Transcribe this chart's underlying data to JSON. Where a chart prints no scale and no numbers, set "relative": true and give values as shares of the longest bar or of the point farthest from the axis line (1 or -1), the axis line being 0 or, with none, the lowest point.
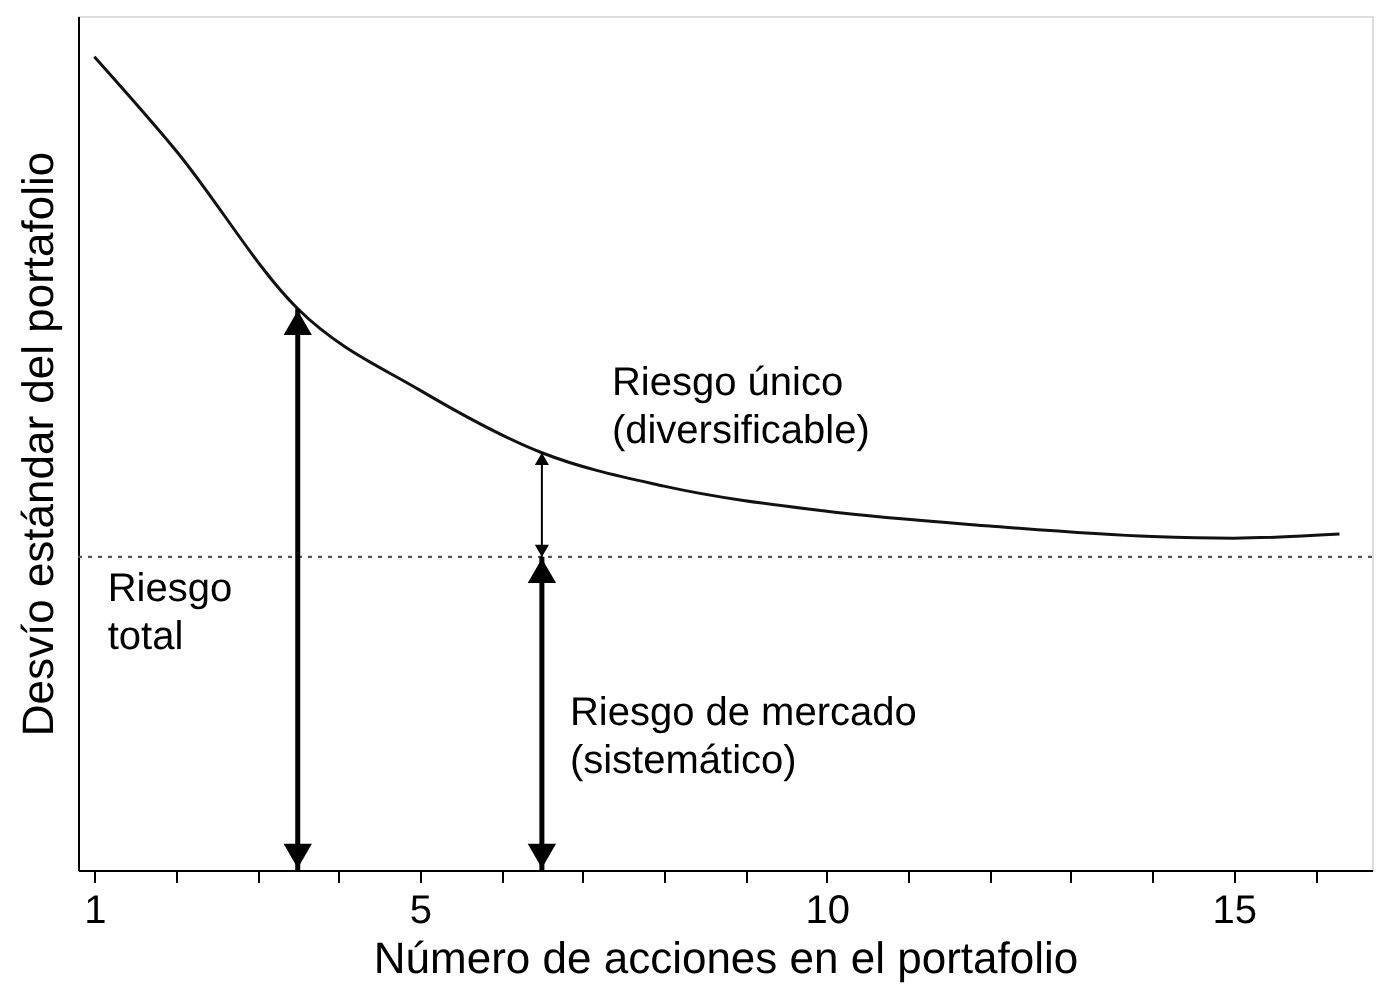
{
  "chart_data": {
    "type": "line",
    "relative": true,
    "xlabel": "Número de acciones en el portafolio",
    "ylabel": "Desvío estándar del portafolio",
    "x": [
      1,
      2,
      3.5,
      5,
      6.5,
      8,
      10,
      12,
      14,
      15,
      16.3
    ],
    "series": [
      {
        "color": "#111111",
        "values": [
          1,
          0.885,
          0.69,
          0.59,
          0.513,
          0.472,
          0.441,
          0.423,
          0.41,
          0.408,
          0.413
        ]
      }
    ],
    "xlim": [
      0.8,
      16.7
    ],
    "xticks": [
      1,
      {
        "value": 2,
        "label": null
      },
      {
        "value": 3,
        "label": null
      },
      {
        "value": 4,
        "label": null
      },
      5,
      {
        "value": 6,
        "label": null
      },
      {
        "value": 7,
        "label": null
      },
      {
        "value": 8,
        "label": null
      },
      {
        "value": 9,
        "label": null
      },
      10,
      {
        "value": 11,
        "label": null
      },
      {
        "value": 12,
        "label": null
      },
      {
        "value": 13,
        "label": null
      },
      {
        "value": 14,
        "label": null
      },
      15,
      {
        "value": 16,
        "label": null
      }
    ],
    "ref_lines": [
      {
        "axis": "y",
        "value": 0.385,
        "color": "#555555",
        "line_style": "dotted"
      }
    ],
    "annotations": [
      "Riesgo\ntotal",
      "Riesgo de mercado\n(sistemático)",
      "Riesgo único\n(diversificable)"
    ],
    "grid": false,
    "tick_labels": "x",
    "marker": "none",
    "line_style": "solid"
  }
}
